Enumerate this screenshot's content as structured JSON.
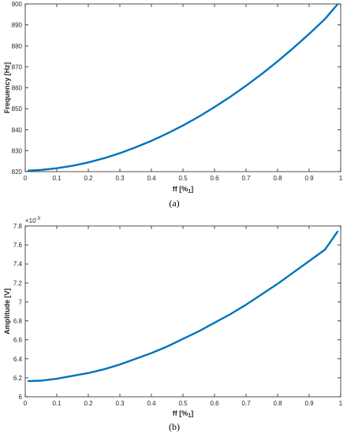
{
  "chart_data": [
    {
      "type": "line",
      "panel_label": "(a)",
      "xlabel": "ff [%",
      "xlabel_sub": "1",
      "xlabel_close": "]",
      "ylabel": "Frequency [Hz]",
      "xlim": [
        0,
        1
      ],
      "ylim": [
        820,
        900
      ],
      "xticks": [
        "0",
        "0.1",
        "0.2",
        "0.3",
        "0.4",
        "0.5",
        "0.6",
        "0.7",
        "0.8",
        "0.9",
        "1"
      ],
      "yticks": [
        "820",
        "830",
        "840",
        "850",
        "860",
        "870",
        "880",
        "890",
        "900"
      ],
      "grid": false,
      "line_color": "#0072BD",
      "series": [
        {
          "x": [
            0.01,
            0.05,
            0.1,
            0.15,
            0.2,
            0.25,
            0.3,
            0.35,
            0.4,
            0.45,
            0.5,
            0.55,
            0.6,
            0.65,
            0.7,
            0.75,
            0.8,
            0.85,
            0.9,
            0.95,
            0.99
          ],
          "y": [
            820.5,
            820.8,
            821.6,
            822.8,
            824.4,
            826.4,
            828.8,
            831.6,
            834.7,
            838.2,
            842.0,
            846.2,
            850.8,
            855.7,
            861.0,
            866.6,
            872.6,
            879.0,
            885.7,
            892.8,
            899.8
          ]
        }
      ]
    },
    {
      "type": "line",
      "panel_label": "(b)",
      "xlabel": "ff [%",
      "xlabel_sub": "1",
      "xlabel_close": "]",
      "ylabel": "Amplitude [V]",
      "y_exponent_base": "×10",
      "y_exponent_power": "-3",
      "xlim": [
        0,
        1
      ],
      "ylim": [
        6.0,
        7.8
      ],
      "xticks": [
        "0",
        "0.1",
        "0.2",
        "0.3",
        "0.4",
        "0.5",
        "0.6",
        "0.7",
        "0.8",
        "0.9",
        "1"
      ],
      "yticks": [
        "6",
        "6.2",
        "6.4",
        "6.6",
        "6.8",
        "7",
        "7.2",
        "7.4",
        "7.6",
        "7.8"
      ],
      "grid": false,
      "line_color": "#0072BD",
      "series": [
        {
          "x": [
            0.01,
            0.05,
            0.1,
            0.15,
            0.2,
            0.25,
            0.3,
            0.35,
            0.4,
            0.45,
            0.5,
            0.55,
            0.6,
            0.65,
            0.7,
            0.75,
            0.8,
            0.85,
            0.9,
            0.95,
            0.99
          ],
          "y": [
            6.165,
            6.17,
            6.19,
            6.22,
            6.25,
            6.29,
            6.34,
            6.4,
            6.46,
            6.53,
            6.61,
            6.69,
            6.78,
            6.87,
            6.97,
            7.08,
            7.19,
            7.31,
            7.43,
            7.55,
            7.74
          ]
        }
      ]
    }
  ]
}
